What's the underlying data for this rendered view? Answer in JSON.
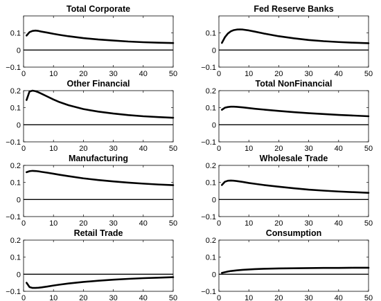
{
  "chart_data": [
    {
      "type": "line",
      "title": "Total Corporate",
      "xlim": [
        0,
        50
      ],
      "ylim": [
        -0.1,
        0.2
      ],
      "xticks": [
        0,
        10,
        20,
        30,
        40,
        50
      ],
      "yticks": [
        -0.1,
        0,
        0.1
      ],
      "ytick_labels": [
        "−0.1",
        "0",
        "0.1"
      ],
      "zero_line": true,
      "series": [
        {
          "x": [
            1,
            2,
            3,
            4,
            5,
            6,
            8,
            10,
            12,
            15,
            20,
            25,
            30,
            35,
            40,
            45,
            50
          ],
          "y": [
            0.085,
            0.105,
            0.112,
            0.114,
            0.112,
            0.108,
            0.102,
            0.095,
            0.089,
            0.081,
            0.07,
            0.062,
            0.056,
            0.05,
            0.046,
            0.043,
            0.041
          ]
        }
      ]
    },
    {
      "type": "line",
      "title": "Fed Reserve Banks",
      "xlim": [
        0,
        50
      ],
      "ylim": [
        -0.1,
        0.2
      ],
      "xticks": [
        0,
        10,
        20,
        30,
        40,
        50
      ],
      "yticks": [
        -0.1,
        0,
        0.1
      ],
      "ytick_labels": [
        "−0.1",
        "0",
        "0.1"
      ],
      "zero_line": true,
      "series": [
        {
          "x": [
            1,
            2,
            3,
            4,
            5,
            6,
            7,
            8,
            10,
            12,
            15,
            20,
            25,
            30,
            35,
            40,
            45,
            50
          ],
          "y": [
            0.042,
            0.075,
            0.097,
            0.11,
            0.117,
            0.12,
            0.121,
            0.12,
            0.115,
            0.108,
            0.097,
            0.081,
            0.069,
            0.059,
            0.052,
            0.047,
            0.043,
            0.04
          ]
        }
      ]
    },
    {
      "type": "line",
      "title": "Other Financial",
      "xlim": [
        0,
        50
      ],
      "ylim": [
        -0.1,
        0.2
      ],
      "xticks": [
        0,
        10,
        20,
        30,
        40,
        50
      ],
      "yticks": [
        -0.1,
        0,
        0.1,
        0.2
      ],
      "ytick_labels": [
        "−0.1",
        "0",
        "0.1",
        "0.2"
      ],
      "zero_line": true,
      "series": [
        {
          "x": [
            1,
            2,
            3,
            4,
            5,
            6,
            8,
            10,
            12,
            15,
            20,
            25,
            30,
            35,
            40,
            45,
            50
          ],
          "y": [
            0.145,
            0.195,
            0.2,
            0.197,
            0.19,
            0.182,
            0.165,
            0.148,
            0.133,
            0.115,
            0.092,
            0.077,
            0.066,
            0.057,
            0.05,
            0.045,
            0.041
          ]
        }
      ]
    },
    {
      "type": "line",
      "title": "Total NonFinancial",
      "xlim": [
        0,
        50
      ],
      "ylim": [
        -0.1,
        0.2
      ],
      "xticks": [
        0,
        10,
        20,
        30,
        40,
        50
      ],
      "yticks": [
        -0.1,
        0,
        0.1,
        0.2
      ],
      "ytick_labels": [
        "−0.1",
        "0",
        "0.1",
        "0.2"
      ],
      "zero_line": true,
      "series": [
        {
          "x": [
            1,
            2,
            3,
            4,
            5,
            6,
            8,
            10,
            12,
            15,
            20,
            25,
            30,
            35,
            40,
            45,
            50
          ],
          "y": [
            0.088,
            0.1,
            0.104,
            0.106,
            0.106,
            0.105,
            0.102,
            0.098,
            0.094,
            0.089,
            0.081,
            0.074,
            0.068,
            0.063,
            0.058,
            0.054,
            0.05
          ]
        }
      ]
    },
    {
      "type": "line",
      "title": "Manufacturing",
      "xlim": [
        0,
        50
      ],
      "ylim": [
        -0.1,
        0.2
      ],
      "xticks": [
        0,
        10,
        20,
        30,
        40,
        50
      ],
      "yticks": [
        -0.1,
        0,
        0.1,
        0.2
      ],
      "ytick_labels": [
        "−0.1",
        "0",
        "0.1",
        "0.2"
      ],
      "zero_line": true,
      "series": [
        {
          "x": [
            1,
            2,
            3,
            4,
            5,
            6,
            8,
            10,
            12,
            15,
            20,
            25,
            30,
            35,
            40,
            45,
            50
          ],
          "y": [
            0.16,
            0.166,
            0.168,
            0.167,
            0.165,
            0.162,
            0.157,
            0.151,
            0.145,
            0.137,
            0.124,
            0.114,
            0.106,
            0.099,
            0.093,
            0.088,
            0.084
          ]
        }
      ]
    },
    {
      "type": "line",
      "title": "Wholesale Trade",
      "xlim": [
        0,
        50
      ],
      "ylim": [
        -0.1,
        0.2
      ],
      "xticks": [
        0,
        10,
        20,
        30,
        40,
        50
      ],
      "yticks": [
        -0.1,
        0,
        0.1,
        0.2
      ],
      "ytick_labels": [
        "−0.1",
        "0",
        "0.1",
        "0.2"
      ],
      "zero_line": true,
      "series": [
        {
          "x": [
            1,
            2,
            3,
            4,
            5,
            6,
            8,
            10,
            12,
            15,
            20,
            25,
            30,
            35,
            40,
            45,
            50
          ],
          "y": [
            0.085,
            0.104,
            0.11,
            0.111,
            0.11,
            0.108,
            0.103,
            0.097,
            0.092,
            0.085,
            0.075,
            0.066,
            0.058,
            0.052,
            0.047,
            0.043,
            0.039
          ]
        }
      ]
    },
    {
      "type": "line",
      "title": "Retail Trade",
      "xlim": [
        0,
        50
      ],
      "ylim": [
        -0.1,
        0.2
      ],
      "xticks": [
        0,
        10,
        20,
        30,
        40,
        50
      ],
      "yticks": [
        -0.1,
        0,
        0.1,
        0.2
      ],
      "ytick_labels": [
        "−0.1",
        "0",
        "0.1",
        "0.2"
      ],
      "zero_line": true,
      "series": [
        {
          "x": [
            1,
            2,
            3,
            4,
            5,
            6,
            8,
            10,
            12,
            15,
            20,
            25,
            30,
            35,
            40,
            45,
            50
          ],
          "y": [
            -0.05,
            -0.075,
            -0.08,
            -0.08,
            -0.079,
            -0.077,
            -0.072,
            -0.066,
            -0.061,
            -0.054,
            -0.045,
            -0.038,
            -0.032,
            -0.027,
            -0.023,
            -0.02,
            -0.017
          ]
        }
      ]
    },
    {
      "type": "line",
      "title": "Consumption",
      "xlim": [
        0,
        50
      ],
      "ylim": [
        -0.1,
        0.2
      ],
      "xticks": [
        0,
        10,
        20,
        30,
        40,
        50
      ],
      "yticks": [
        -0.1,
        0,
        0.1,
        0.2
      ],
      "ytick_labels": [
        "−0.1",
        "0",
        "0.1",
        "0.2"
      ],
      "zero_line": true,
      "series": [
        {
          "x": [
            1,
            2,
            3,
            4,
            5,
            6,
            8,
            10,
            12,
            15,
            20,
            25,
            30,
            35,
            40,
            45,
            50
          ],
          "y": [
            0.008,
            0.012,
            0.016,
            0.019,
            0.021,
            0.023,
            0.026,
            0.028,
            0.03,
            0.032,
            0.034,
            0.035,
            0.036,
            0.037,
            0.037,
            0.038,
            0.038
          ]
        }
      ]
    }
  ]
}
